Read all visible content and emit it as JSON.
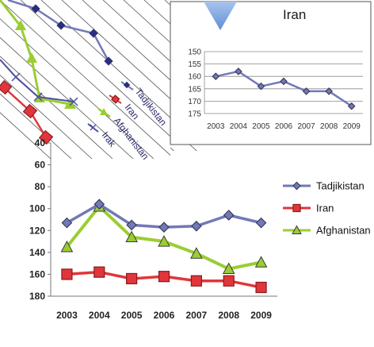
{
  "chart_data": [
    {
      "type": "line",
      "x": [
        "2003",
        "2004",
        "2005",
        "2006",
        "2007",
        "2008",
        "2009"
      ],
      "ylim": [
        40,
        180
      ],
      "y_reversed": true,
      "yticks": [
        40,
        60,
        80,
        100,
        120,
        140,
        160,
        180
      ],
      "grid": false,
      "legend": "right",
      "series": [
        {
          "name": "Tadjikistan",
          "values": [
            113,
            96,
            115,
            117,
            116,
            106,
            113
          ],
          "color": "#7279b8",
          "marker": "diamond"
        },
        {
          "name": "Iran",
          "values": [
            160,
            158,
            164,
            162,
            166,
            166,
            172
          ],
          "color": "#e0363b",
          "marker": "square"
        },
        {
          "name": "Afghanistan",
          "values": [
            135,
            98,
            126,
            130,
            141,
            155,
            149
          ],
          "color": "#9acd32",
          "marker": "triangle"
        }
      ]
    },
    {
      "type": "line",
      "title": "Iran",
      "x": [
        "2003",
        "2004",
        "2005",
        "2006",
        "2007",
        "2008",
        "2009"
      ],
      "ylim": [
        150,
        175
      ],
      "y_reversed": true,
      "yticks": [
        150,
        155,
        160,
        165,
        170,
        175
      ],
      "grid": true,
      "series": [
        {
          "name": "Iran",
          "values": [
            160,
            158,
            164,
            162,
            166,
            166,
            172
          ],
          "color": "#7279b8",
          "marker": "diamond"
        }
      ]
    },
    {
      "type": "line",
      "rotated": true,
      "partial": true,
      "legend": [
        "Tadjikistan",
        "Iran",
        "Afghanistan",
        "Irak"
      ]
    }
  ]
}
